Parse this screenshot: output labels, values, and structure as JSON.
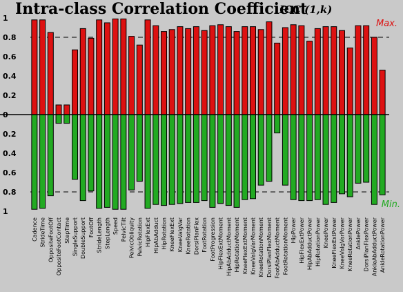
{
  "chart_data": {
    "type": "bar",
    "title": "Intra-class Correlation Coefficient",
    "subtitle": "ICC (1,k)",
    "ylim": [
      0,
      1
    ],
    "y_ticks_top": [
      "1",
      "0.8",
      "0.6",
      "0.4",
      "0.2",
      "0"
    ],
    "y_ticks_bottom": [
      "0.2",
      "0.4",
      "0.6",
      "0.8",
      "1"
    ],
    "reference_line": 0.8,
    "grid": false,
    "colors": {
      "max": "#dd1111",
      "min": "#22aa22",
      "background": "#c9c9c9"
    },
    "categories": [
      "Cadence",
      "StrideTime",
      "OppositeFootOff",
      "OppositeFootContact",
      "StepTime",
      "SingleSupport",
      "DoubleSupport",
      "FootOff",
      "StrideLength",
      "StepLength",
      "Speed",
      "PelvicTilt",
      "PelvicObliquity",
      "PelvicRotation",
      "HipFlexExt",
      "HipAbAdduct",
      "HipRotation",
      "KneeFlexExt",
      "KneeValgVar",
      "KneeRotation",
      "DorsiPlanFlex",
      "FootRotation",
      "FootProgression",
      "HipFlexExtMoment",
      "HipAbAdductMoment",
      "HipRotationMoment",
      "KneeFlexExtMoment",
      "KneeValgVarMoment",
      "KneeRotationMoment",
      "DorsiPlanFlexMoment",
      "FootAbAdductMoment",
      "FootRotationMoment",
      "HipPower",
      "HipFlexExtPower",
      "HipAbAdductPower",
      "HipRotationPower",
      "KneePower",
      "KneeFlexExtPower",
      "KneeValgVarPower",
      "KneeRotationPower",
      "AnklePower",
      "DorsiPlanFlexPower",
      "AnkleAbAdductPower",
      "AnkleRotationPower"
    ],
    "series": [
      {
        "name": "Max.",
        "values": [
          0.98,
          0.98,
          0.85,
          0.1,
          0.1,
          0.67,
          0.89,
          0.79,
          0.98,
          0.95,
          0.99,
          0.99,
          0.81,
          0.72,
          0.98,
          0.92,
          0.86,
          0.88,
          0.91,
          0.89,
          0.91,
          0.87,
          0.92,
          0.93,
          0.91,
          0.86,
          0.91,
          0.91,
          0.88,
          0.96,
          0.74,
          0.9,
          0.93,
          0.92,
          0.76,
          0.89,
          0.91,
          0.91,
          0.87,
          0.69,
          0.92,
          0.92,
          0.8,
          0.46
        ]
      },
      {
        "name": "Min.",
        "values": [
          0.98,
          0.97,
          0.84,
          0.09,
          0.09,
          0.67,
          0.89,
          0.79,
          0.97,
          0.96,
          0.98,
          0.98,
          0.78,
          0.69,
          0.97,
          0.93,
          0.94,
          0.93,
          0.92,
          0.91,
          0.91,
          0.89,
          0.96,
          0.92,
          0.94,
          0.96,
          0.88,
          0.87,
          0.73,
          0.69,
          0.19,
          0.73,
          0.88,
          0.89,
          0.89,
          0.88,
          0.93,
          0.91,
          0.82,
          0.85,
          0.71,
          0.7,
          0.93,
          0.83
        ]
      }
    ]
  }
}
